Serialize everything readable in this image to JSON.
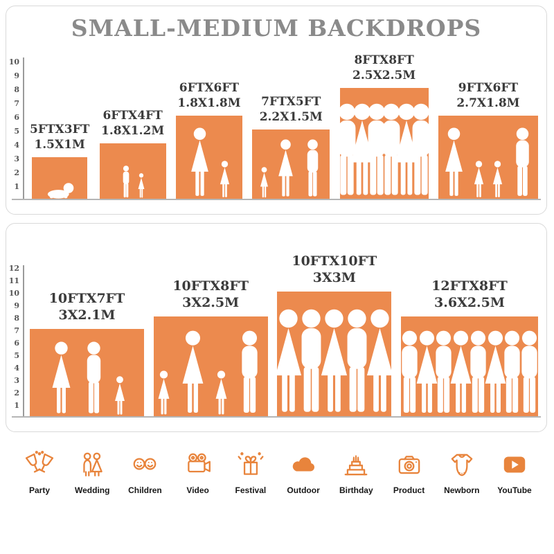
{
  "colors": {
    "accent": "#EC8A4E",
    "icon_orange": "#E8843C",
    "title_gray": "#8A8A8A",
    "label_dark": "#3B3B3B"
  },
  "title": "SMALL-MEDIUM BACKDROPS",
  "top_chart": {
    "ruler": [
      "1",
      "2",
      "3",
      "4",
      "5",
      "6",
      "7",
      "8",
      "9",
      "10"
    ],
    "items": [
      {
        "size_ft": "5FTX3FT",
        "size_m": "1.5X1M",
        "w_ft": 5,
        "h_ft": 3,
        "figures": [
          "baby"
        ]
      },
      {
        "size_ft": "6FTX4FT",
        "size_m": "1.8X1.2M",
        "w_ft": 6,
        "h_ft": 4,
        "figures": [
          "child",
          "childS"
        ]
      },
      {
        "size_ft": "6FTX6FT",
        "size_m": "1.8X1.8M",
        "w_ft": 6,
        "h_ft": 6,
        "figures": [
          "adultF",
          "childS"
        ]
      },
      {
        "size_ft": "7FTX5FT",
        "size_m": "2.2X1.5M",
        "w_ft": 7,
        "h_ft": 5,
        "figures": [
          "childS",
          "adultF",
          "adult"
        ]
      },
      {
        "size_ft": "8FTX8FT",
        "size_m": "2.5X2.5M",
        "w_ft": 8,
        "h_ft": 8,
        "figures": [
          "adult",
          "adultF",
          "adult",
          "adult",
          "adultF",
          "adult"
        ]
      },
      {
        "size_ft": "9FTX6FT",
        "size_m": "2.7X1.8M",
        "w_ft": 9,
        "h_ft": 6,
        "figures": [
          "adultF",
          "childS",
          "childS",
          "adult"
        ]
      }
    ]
  },
  "bottom_chart": {
    "ruler": [
      "1",
      "2",
      "3",
      "4",
      "5",
      "6",
      "7",
      "8",
      "9",
      "10",
      "11",
      "12"
    ],
    "items": [
      {
        "size_ft": "10FTX7FT",
        "size_m": "3X2.1M",
        "w_ft": 10,
        "h_ft": 7,
        "figures": [
          "adultF",
          "adult",
          "childS"
        ]
      },
      {
        "size_ft": "10FTX8FT",
        "size_m": "3X2.5M",
        "w_ft": 10,
        "h_ft": 8,
        "figures": [
          "childS",
          "adultF",
          "childS",
          "adult"
        ]
      },
      {
        "size_ft": "10FTX10FT",
        "size_m": "3X3M",
        "w_ft": 10,
        "h_ft": 10,
        "figures": [
          "adultF",
          "adult",
          "adultF",
          "adult",
          "adultF"
        ]
      },
      {
        "size_ft": "12FTX8FT",
        "size_m": "3.6X2.5M",
        "w_ft": 12,
        "h_ft": 8,
        "figures": [
          "adult",
          "adultF",
          "adult",
          "adultF",
          "adult",
          "adultF",
          "adult",
          "adult"
        ]
      }
    ]
  },
  "categories": [
    {
      "label": "Party"
    },
    {
      "label": "Wedding"
    },
    {
      "label": "Children"
    },
    {
      "label": "Video"
    },
    {
      "label": "Festival"
    },
    {
      "label": "Outdoor"
    },
    {
      "label": "Birthday"
    },
    {
      "label": "Product"
    },
    {
      "label": "Newborn"
    },
    {
      "label": "YouTube"
    }
  ]
}
